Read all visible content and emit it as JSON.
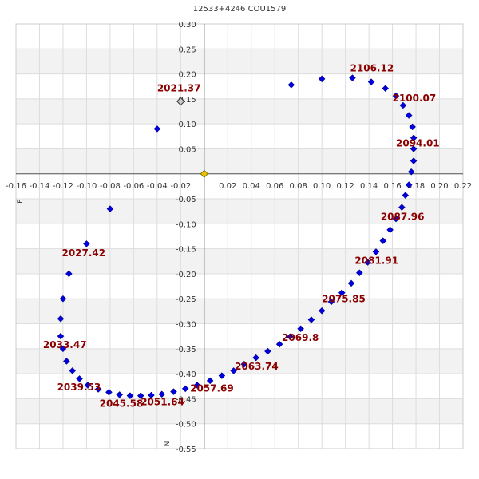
{
  "title": "12533+4246 COU1579",
  "chart_data": {
    "type": "scatter",
    "title": "12533+4246 COU1579",
    "xlim": [
      -0.16,
      0.22
    ],
    "ylim": [
      -0.55,
      0.3
    ],
    "x_ticks": [
      -0.16,
      -0.14,
      -0.12,
      -0.1,
      -0.08,
      -0.06,
      -0.04,
      -0.02,
      0.02,
      0.04,
      0.06,
      0.08,
      0.1,
      0.12,
      0.14,
      0.16,
      0.18,
      0.2,
      0.22
    ],
    "x_tick_labels": [
      "-0.16",
      "-0.14",
      "-0.12",
      "-0.10",
      "-0.08",
      "-0.06",
      "-0.04",
      "-0.02",
      "0.02",
      "0.04",
      "0.06",
      "0.08",
      "0.10",
      "0.12",
      "0.14",
      "0.16",
      "0.18",
      "0.20",
      "0.22"
    ],
    "y_ticks": [
      0.3,
      0.25,
      0.2,
      0.15,
      0.1,
      0.05,
      -0.05,
      -0.1,
      -0.15,
      -0.2,
      -0.25,
      -0.3,
      -0.35,
      -0.4,
      -0.45,
      -0.5,
      -0.55
    ],
    "y_tick_labels": [
      "0.30",
      "0.25",
      "0.20",
      "0.15",
      "0.10",
      "0.05",
      "-0.05",
      "-0.10",
      "-0.15",
      "-0.20",
      "-0.25",
      "-0.30",
      "-0.35",
      "-0.40",
      "-0.45",
      "-0.50",
      "-0.55"
    ],
    "axis_letters": {
      "east": "E",
      "north": "N"
    },
    "grid": true,
    "colors": {
      "orbit_point": "#0000dd",
      "data_label": "#8b0000",
      "primary": "#e8c000",
      "observed": "#cccccc",
      "band": "#f2f2f2",
      "grid": "#dddddd"
    },
    "series": [
      {
        "values": [
          [
            -0.04,
            0.09
          ],
          [
            -0.08,
            -0.07
          ],
          [
            -0.1,
            -0.14
          ],
          [
            -0.115,
            -0.2
          ],
          [
            -0.12,
            -0.25
          ],
          [
            -0.122,
            -0.29
          ],
          [
            -0.122,
            -0.325
          ],
          [
            -0.12,
            -0.35
          ],
          [
            -0.117,
            -0.375
          ],
          [
            -0.112,
            -0.394
          ],
          [
            -0.106,
            -0.41
          ],
          [
            -0.099,
            -0.423
          ],
          [
            -0.09,
            -0.431
          ],
          [
            -0.081,
            -0.437
          ],
          [
            -0.072,
            -0.442
          ],
          [
            -0.063,
            -0.444
          ],
          [
            -0.054,
            -0.444
          ],
          [
            -0.045,
            -0.443
          ],
          [
            -0.036,
            -0.441
          ],
          [
            -0.026,
            -0.436
          ],
          [
            -0.016,
            -0.43
          ],
          [
            -0.006,
            -0.423
          ],
          [
            0.005,
            -0.414
          ],
          [
            0.015,
            -0.404
          ],
          [
            0.025,
            -0.394
          ],
          [
            0.034,
            -0.381
          ],
          [
            0.044,
            -0.368
          ],
          [
            0.054,
            -0.355
          ],
          [
            0.064,
            -0.341
          ],
          [
            0.073,
            -0.326
          ],
          [
            0.082,
            -0.31
          ],
          [
            0.091,
            -0.292
          ],
          [
            0.1,
            -0.274
          ],
          [
            0.108,
            -0.256
          ],
          [
            0.117,
            -0.238
          ],
          [
            0.125,
            -0.219
          ],
          [
            0.132,
            -0.198
          ],
          [
            0.139,
            -0.177
          ],
          [
            0.146,
            -0.156
          ],
          [
            0.152,
            -0.134
          ],
          [
            0.158,
            -0.112
          ],
          [
            0.163,
            -0.09
          ],
          [
            0.168,
            -0.067
          ],
          [
            0.171,
            -0.043
          ],
          [
            0.174,
            -0.022
          ],
          [
            0.176,
            0.004
          ],
          [
            0.178,
            0.026
          ],
          [
            0.178,
            0.05
          ],
          [
            0.178,
            0.072
          ],
          [
            0.177,
            0.094
          ],
          [
            0.174,
            0.117
          ],
          [
            0.169,
            0.137
          ],
          [
            0.163,
            0.156
          ],
          [
            0.154,
            0.171
          ],
          [
            0.142,
            0.184
          ],
          [
            0.126,
            0.192
          ],
          [
            0.1,
            0.19
          ],
          [
            0.074,
            0.178
          ]
        ]
      }
    ],
    "primary": [
      0.0,
      0.0
    ],
    "observed": [
      [
        -0.02,
        0.145
      ]
    ],
    "data_labels": [
      {
        "text": "2106.12",
        "x": 0.124,
        "y": 0.205
      },
      {
        "text": "2100.07",
        "x": 0.16,
        "y": 0.145
      },
      {
        "text": "2094.01",
        "x": 0.163,
        "y": 0.055
      },
      {
        "text": "2087.96",
        "x": 0.15,
        "y": -0.092
      },
      {
        "text": "2081.91",
        "x": 0.128,
        "y": -0.18
      },
      {
        "text": "2075.85",
        "x": 0.1,
        "y": -0.257
      },
      {
        "text": "2069.8",
        "x": 0.066,
        "y": -0.334
      },
      {
        "text": "2063.74",
        "x": 0.026,
        "y": -0.392
      },
      {
        "text": "2057.69",
        "x": -0.012,
        "y": -0.436
      },
      {
        "text": "2051.64",
        "x": -0.054,
        "y": -0.463
      },
      {
        "text": "2045.58",
        "x": -0.089,
        "y": -0.466
      },
      {
        "text": "2039.53",
        "x": -0.125,
        "y": -0.433
      },
      {
        "text": "2033.47",
        "x": -0.137,
        "y": -0.349
      },
      {
        "text": "2027.42",
        "x": -0.121,
        "y": -0.165
      },
      {
        "text": "2021.37",
        "x": -0.04,
        "y": 0.165
      }
    ]
  }
}
